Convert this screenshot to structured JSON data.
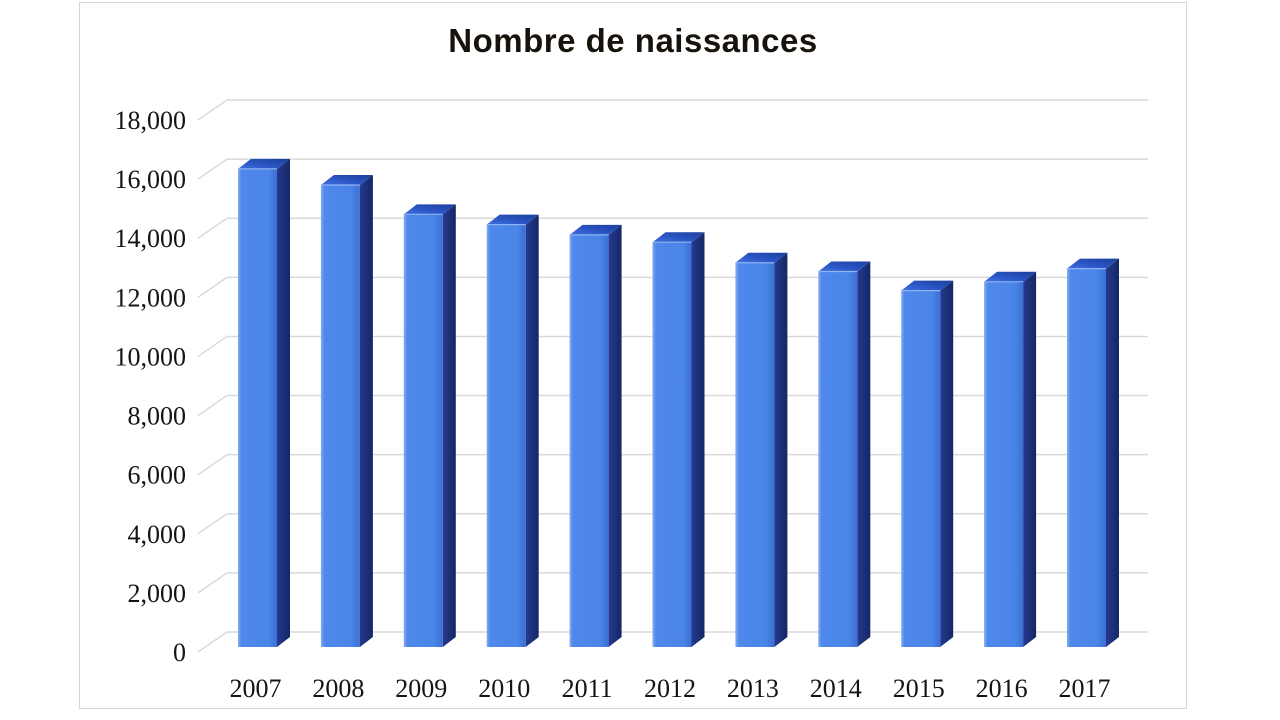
{
  "page": {
    "background": "#ffffff"
  },
  "chart_data": {
    "type": "bar",
    "style": "3d-column",
    "title": "Nombre de naissances",
    "categories": [
      "2007",
      "2008",
      "2009",
      "2010",
      "2011",
      "2012",
      "2013",
      "2014",
      "2015",
      "2016",
      "2017"
    ],
    "values": [
      16300,
      15750,
      14750,
      14400,
      14050,
      13800,
      13100,
      12800,
      12150,
      12450,
      12900
    ],
    "xlabel": "",
    "ylabel": "",
    "ylim": [
      0,
      18000
    ],
    "y_ticks": [
      0,
      2000,
      4000,
      6000,
      8000,
      10000,
      12000,
      14000,
      16000,
      18000
    ],
    "y_tick_labels": [
      "0",
      "2,000",
      "4,000",
      "6,000",
      "8,000",
      "10,000",
      "12,000",
      "14,000",
      "16,000",
      "18,000"
    ],
    "grid": true,
    "legend": "none",
    "colors": {
      "bar_front": "#4a85e8",
      "bar_front_highlight": "#85abf3",
      "bar_top": "#2a55c4",
      "bar_side": "#142765",
      "gridline": "#d9d9d9",
      "text": "#141414",
      "title_text": "#18120c",
      "frame_border": "#d6d6d6",
      "background": "#ffffff"
    }
  }
}
